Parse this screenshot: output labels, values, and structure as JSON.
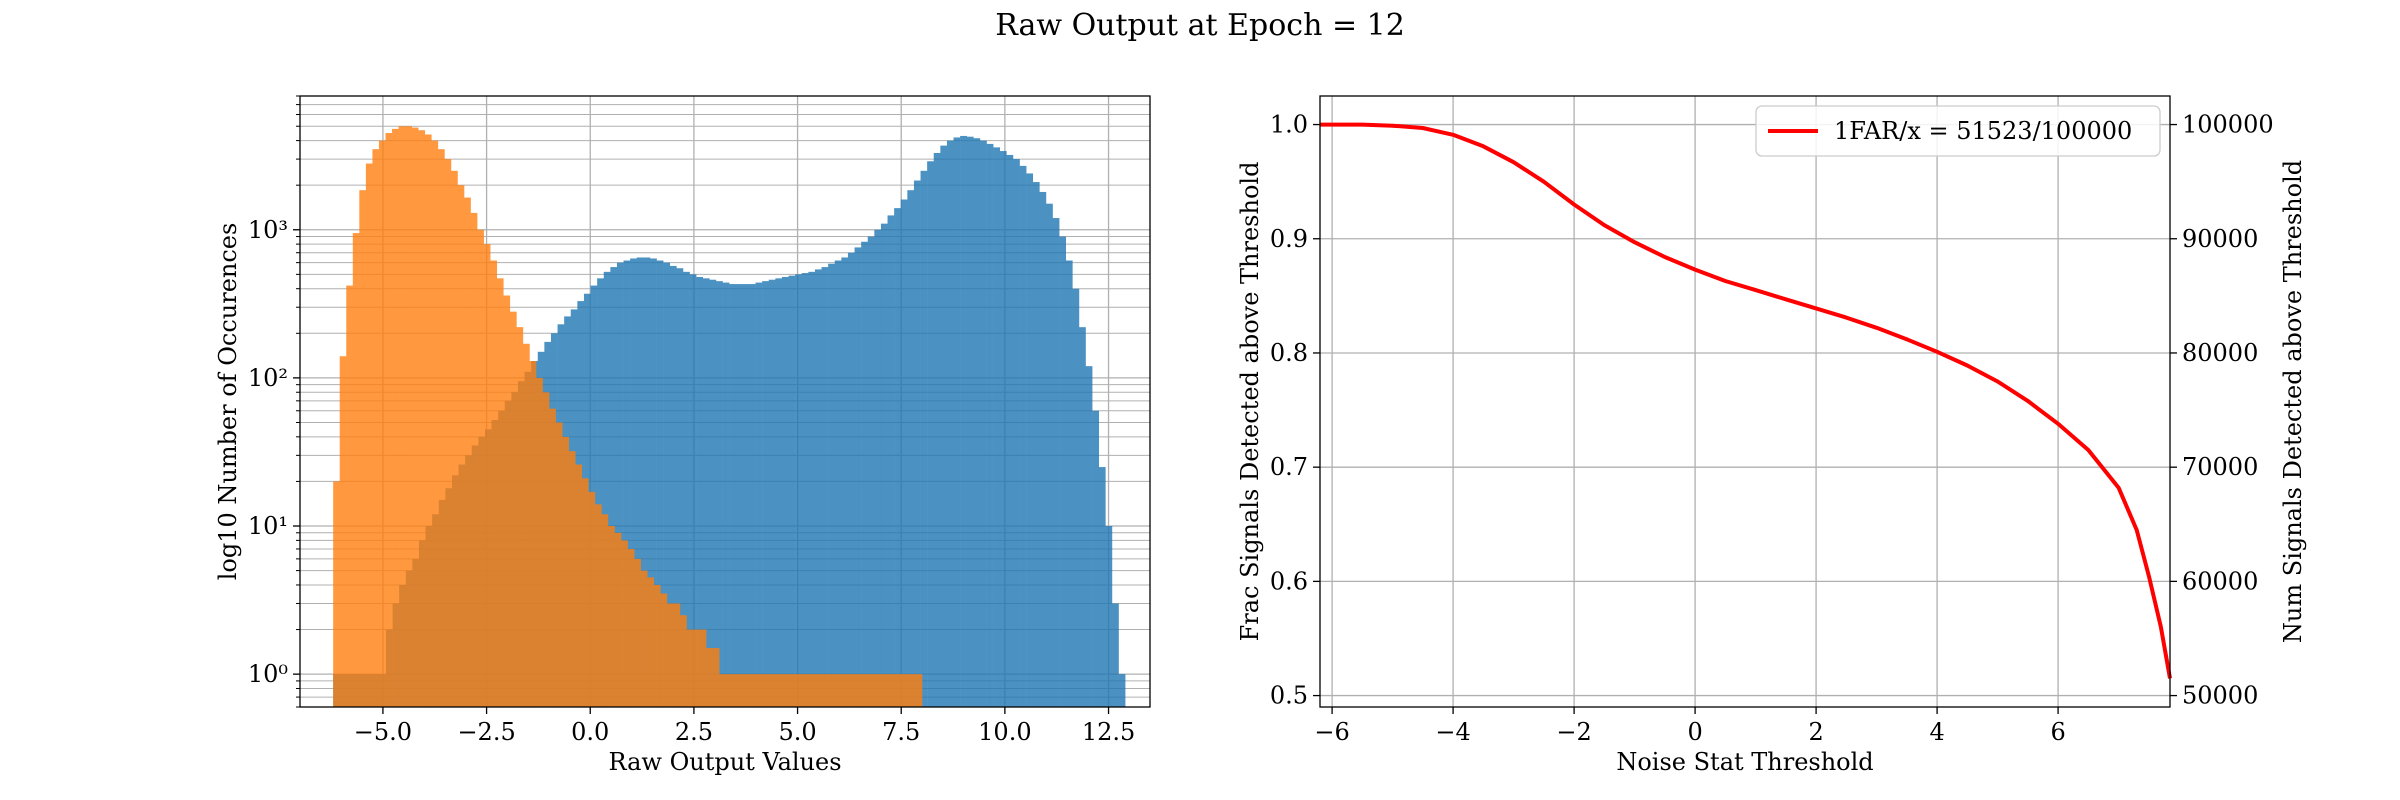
{
  "figure": {
    "title": "Raw Output at Epoch = 12"
  },
  "colors": {
    "blue": "#1f77b4",
    "orange": "#ff7f0e",
    "red": "#ff0000",
    "grid": "#b0b0b0"
  },
  "chart_data": [
    {
      "type": "bar",
      "subtype": "histogram",
      "title": "",
      "xlabel": "Raw Output Values",
      "ylabel": "log10 Number of Occurences",
      "yscale": "log",
      "xlim": [
        -7.0,
        13.5
      ],
      "ylim": [
        0.6,
        8000
      ],
      "xticks": [
        -5.0,
        -2.5,
        0.0,
        2.5,
        5.0,
        7.5,
        10.0,
        12.5
      ],
      "xtick_labels": [
        "−5.0",
        "−2.5",
        "0.0",
        "2.5",
        "5.0",
        "7.5",
        "10.0",
        "12.5"
      ],
      "yticks": [
        1,
        10,
        100,
        1000
      ],
      "ytick_labels": [
        "10⁰",
        "10¹",
        "10²",
        "10³"
      ],
      "grid": true,
      "minor_grid": true,
      "series": [
        {
          "color": "#1f77b4",
          "alpha": 0.8,
          "x_start": -6.2,
          "x_end": 12.9,
          "bins": 120,
          "counts": [
            1,
            1,
            1,
            1,
            1,
            1,
            1,
            1,
            2,
            3,
            4,
            5,
            6,
            8,
            10,
            12,
            15,
            18,
            22,
            26,
            30,
            35,
            40,
            45,
            52,
            60,
            70,
            80,
            95,
            110,
            130,
            150,
            175,
            200,
            230,
            260,
            290,
            330,
            370,
            420,
            470,
            520,
            560,
            600,
            620,
            640,
            650,
            650,
            640,
            620,
            600,
            570,
            550,
            520,
            500,
            480,
            470,
            460,
            450,
            440,
            430,
            430,
            430,
            430,
            440,
            450,
            460,
            470,
            480,
            490,
            500,
            510,
            520,
            540,
            560,
            590,
            620,
            650,
            700,
            760,
            830,
            900,
            1000,
            1100,
            1250,
            1400,
            1600,
            1850,
            2150,
            2500,
            2900,
            3300,
            3700,
            4000,
            4200,
            4300,
            4250,
            4150,
            4000,
            3800,
            3600,
            3400,
            3200,
            3000,
            2700,
            2400,
            2100,
            1800,
            1500,
            1200,
            900,
            620,
            400,
            220,
            120,
            60,
            25,
            10,
            3,
            1
          ]
        },
        {
          "color": "#ff7f0e",
          "alpha": 0.8,
          "x_start": -6.2,
          "x_end": 8.0,
          "bins": 90,
          "counts": [
            20,
            140,
            420,
            950,
            1850,
            2800,
            3500,
            4000,
            4500,
            4800,
            5000,
            5000,
            4900,
            4700,
            4400,
            4000,
            3500,
            3000,
            2500,
            2000,
            1650,
            1300,
            1000,
            800,
            620,
            470,
            360,
            280,
            220,
            170,
            130,
            100,
            80,
            62,
            50,
            40,
            32,
            26,
            21,
            17,
            14,
            12,
            10,
            9,
            8,
            7,
            6,
            5,
            4.5,
            4,
            3.5,
            3,
            3,
            2.5,
            2,
            2,
            2,
            1.5,
            1.5,
            1,
            1,
            1,
            1,
            1,
            1,
            1,
            1,
            1,
            1,
            1,
            1,
            1,
            1,
            1,
            1,
            1,
            1,
            1,
            1,
            1,
            1,
            1,
            1,
            1,
            1,
            1,
            1,
            1,
            1,
            1
          ]
        }
      ]
    },
    {
      "type": "line",
      "title": "",
      "xlabel": "Noise Stat Threshold",
      "ylabel": "Frac Signals Detected above Threshold",
      "ylabel_right": "Num Signals Detected above Threshold",
      "xlim": [
        -6.2,
        7.85
      ],
      "ylim": [
        0.49,
        1.025
      ],
      "ylim_right": [
        49000,
        102500
      ],
      "xticks": [
        -6,
        -4,
        -2,
        0,
        2,
        4,
        6
      ],
      "xtick_labels": [
        "−6",
        "−4",
        "−2",
        "0",
        "2",
        "4",
        "6"
      ],
      "yticks": [
        0.5,
        0.6,
        0.7,
        0.8,
        0.9,
        1.0
      ],
      "ytick_labels": [
        "0.5",
        "0.6",
        "0.7",
        "0.8",
        "0.9",
        "1.0"
      ],
      "yticks_right": [
        50000,
        60000,
        70000,
        80000,
        90000,
        100000
      ],
      "ytick_labels_right": [
        "50000",
        "60000",
        "70000",
        "80000",
        "90000",
        "100000"
      ],
      "grid": true,
      "legend_position": "top-right",
      "series": [
        {
          "name": "1FAR/x = 51523/100000",
          "color": "#ff0000",
          "x": [
            -6.2,
            -5.5,
            -5.0,
            -4.5,
            -4.0,
            -3.5,
            -3.0,
            -2.5,
            -2.0,
            -1.5,
            -1.0,
            -0.5,
            0.0,
            0.5,
            1.0,
            1.5,
            2.0,
            2.5,
            3.0,
            3.5,
            4.0,
            4.5,
            5.0,
            5.5,
            6.0,
            6.5,
            7.0,
            7.3,
            7.5,
            7.7,
            7.85
          ],
          "y": [
            1.0,
            1.0,
            0.999,
            0.997,
            0.991,
            0.981,
            0.967,
            0.95,
            0.93,
            0.912,
            0.897,
            0.884,
            0.873,
            0.863,
            0.855,
            0.847,
            0.839,
            0.831,
            0.822,
            0.812,
            0.801,
            0.789,
            0.775,
            0.758,
            0.738,
            0.715,
            0.682,
            0.645,
            0.605,
            0.56,
            0.515
          ]
        }
      ]
    }
  ]
}
